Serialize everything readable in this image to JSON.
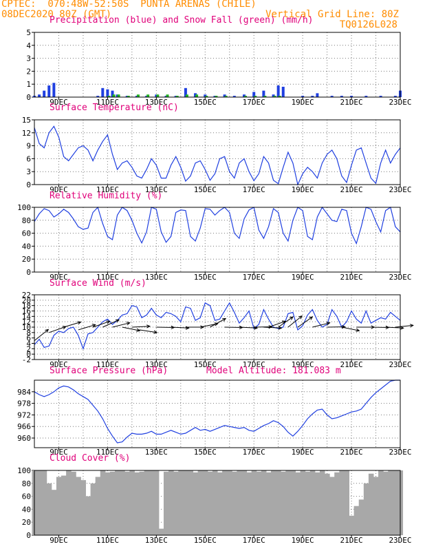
{
  "header": {
    "line1": "CPTEC:  070:48W-52:50S  PUNTA ARENAS (CHILE)",
    "line2": "08DEC2020 80Z (GMT)",
    "grid_note": "Vertical Grid Line: 80Z",
    "code": "TQ0126L028",
    "color": "#ff8c00"
  },
  "x_ticks": [
    "9DEC",
    "11DEC",
    "13DEC",
    "15DEC",
    "17DEC",
    "19DEC",
    "21DEC",
    "23DEC"
  ],
  "colors": {
    "title": "#e0007a",
    "line": "#1f3fe0",
    "precip": "#1f3fe0",
    "snow": "#22b022",
    "cloud": "#a8a8a8",
    "arrow": "#000000"
  },
  "chart_data": [
    {
      "type": "bar",
      "title": "Precipitation (blue) and Snow Fall (green) (mm/h)",
      "ylim": [
        0,
        5
      ],
      "yticks": [
        "0",
        "1",
        "2",
        "3",
        "4",
        "5"
      ],
      "x_days": [
        8.0,
        8.2,
        8.4,
        8.6,
        8.8,
        10.6,
        10.8,
        11.0,
        11.2,
        11.4,
        11.8,
        12.2,
        12.6,
        13.0,
        13.4,
        13.8,
        14.2,
        14.6,
        15.0,
        15.4,
        15.8,
        16.2,
        16.6,
        17.0,
        17.4,
        17.8,
        18.0,
        18.2,
        19.0,
        19.4,
        19.6,
        20.2,
        20.6,
        21.0,
        21.6,
        22.2,
        22.8,
        23.0
      ],
      "series": [
        {
          "name": "Precipitation",
          "values": [
            0.1,
            0.2,
            0.5,
            0.9,
            1.1,
            0.1,
            0.7,
            0.6,
            0.5,
            0.2,
            0.1,
            0.1,
            0.1,
            0.2,
            0.1,
            0.1,
            0.7,
            0.3,
            0.2,
            0.1,
            0.2,
            0.1,
            0.2,
            0.4,
            0.5,
            0.2,
            0.9,
            0.8,
            0.1,
            0.1,
            0.3,
            0.1,
            0.1,
            0.1,
            0.1,
            0.1,
            0.1,
            0.5
          ]
        },
        {
          "name": "Snow Fall",
          "values": [
            0,
            0,
            0,
            0,
            0,
            0,
            0,
            0.1,
            0.2,
            0.2,
            0.1,
            0.2,
            0.2,
            0.2,
            0.2,
            0.1,
            0.2,
            0.2,
            0.1,
            0.1,
            0.1,
            0,
            0.1,
            0.1,
            0.1,
            0.1,
            0.1,
            0,
            0,
            0,
            0,
            0,
            0,
            0,
            0,
            0,
            0,
            0
          ]
        }
      ]
    },
    {
      "type": "line",
      "title": "Surface Temperature (nC)",
      "ylim": [
        0,
        15
      ],
      "yticks": [
        "0",
        "3",
        "6",
        "9",
        "12",
        "15"
      ],
      "x_days": [
        8.0,
        8.2,
        8.4,
        8.6,
        8.8,
        9.0,
        9.2,
        9.4,
        9.6,
        9.8,
        10.0,
        10.2,
        10.4,
        10.6,
        10.8,
        11.0,
        11.2,
        11.4,
        11.6,
        11.8,
        12.0,
        12.2,
        12.4,
        12.6,
        12.8,
        13.0,
        13.2,
        13.4,
        13.6,
        13.8,
        14.0,
        14.2,
        14.4,
        14.6,
        14.8,
        15.0,
        15.2,
        15.4,
        15.6,
        15.8,
        16.0,
        16.2,
        16.4,
        16.6,
        16.8,
        17.0,
        17.2,
        17.4,
        17.6,
        17.8,
        18.0,
        18.2,
        18.4,
        18.6,
        18.8,
        19.0,
        19.2,
        19.4,
        19.6,
        19.8,
        20.0,
        20.2,
        20.4,
        20.6,
        20.8,
        21.0,
        21.2,
        21.4,
        21.6,
        21.8,
        22.0,
        22.2,
        22.4,
        22.6,
        22.8,
        23.0
      ],
      "values": [
        13.2,
        9.5,
        8.5,
        12.0,
        13.5,
        11.0,
        6.5,
        5.5,
        7.0,
        8.5,
        9.0,
        8.0,
        5.5,
        8.0,
        10.0,
        11.5,
        7.0,
        3.5,
        5.0,
        5.5,
        4.0,
        2.0,
        1.5,
        3.5,
        6.0,
        4.5,
        1.5,
        1.5,
        4.5,
        6.5,
        4.0,
        0.8,
        2.0,
        5.0,
        5.5,
        3.5,
        1.0,
        2.5,
        6.0,
        6.5,
        3.0,
        1.5,
        5.0,
        6.0,
        3.0,
        0.9,
        2.5,
        6.5,
        5.0,
        1.0,
        0.2,
        4.0,
        7.5,
        5.0,
        0.0,
        2.5,
        4.0,
        3.0,
        1.5,
        5.0,
        7.0,
        8.0,
        6.0,
        2.0,
        0.5,
        4.5,
        8.0,
        8.5,
        5.0,
        1.5,
        0.3,
        5.0,
        8.0,
        5.0,
        7.0,
        8.5
      ]
    },
    {
      "type": "line",
      "title": "Relative Humidity (%)",
      "ylim": [
        0,
        100
      ],
      "yticks": [
        "0",
        "20",
        "40",
        "60",
        "80",
        "100"
      ],
      "x_days": [
        8.0,
        8.2,
        8.4,
        8.6,
        8.8,
        9.0,
        9.2,
        9.4,
        9.6,
        9.8,
        10.0,
        10.2,
        10.4,
        10.6,
        10.8,
        11.0,
        11.2,
        11.4,
        11.6,
        11.8,
        12.0,
        12.2,
        12.4,
        12.6,
        12.8,
        13.0,
        13.2,
        13.4,
        13.6,
        13.8,
        14.0,
        14.2,
        14.4,
        14.6,
        14.8,
        15.0,
        15.2,
        15.4,
        15.6,
        15.8,
        16.0,
        16.2,
        16.4,
        16.6,
        16.8,
        17.0,
        17.2,
        17.4,
        17.6,
        17.8,
        18.0,
        18.2,
        18.4,
        18.6,
        18.8,
        19.0,
        19.2,
        19.4,
        19.6,
        19.8,
        20.0,
        20.2,
        20.4,
        20.6,
        20.8,
        21.0,
        21.2,
        21.4,
        21.6,
        21.8,
        22.0,
        22.2,
        22.4,
        22.6,
        22.8,
        23.0
      ],
      "values": [
        78,
        90,
        98,
        95,
        85,
        90,
        97,
        92,
        82,
        70,
        66,
        68,
        92,
        100,
        75,
        55,
        50,
        88,
        100,
        95,
        80,
        60,
        45,
        62,
        100,
        97,
        62,
        46,
        55,
        92,
        96,
        95,
        55,
        48,
        68,
        98,
        97,
        88,
        95,
        100,
        92,
        60,
        52,
        82,
        96,
        100,
        65,
        52,
        70,
        98,
        92,
        60,
        48,
        80,
        100,
        95,
        55,
        50,
        85,
        100,
        90,
        80,
        78,
        97,
        95,
        60,
        44,
        70,
        100,
        97,
        78,
        62,
        95,
        100,
        70,
        62
      ]
    },
    {
      "type": "line",
      "title": "Surface Wind (m/s)",
      "ylim": [
        -2,
        22
      ],
      "yticks": [
        "-2",
        "0",
        "2",
        "4",
        "6",
        "8",
        "10",
        "12",
        "14",
        "16",
        "18",
        "20",
        "22"
      ],
      "x_days": [
        8.0,
        8.2,
        8.4,
        8.6,
        8.8,
        9.0,
        9.2,
        9.4,
        9.6,
        9.8,
        10.0,
        10.2,
        10.4,
        10.6,
        10.8,
        11.0,
        11.2,
        11.4,
        11.6,
        11.8,
        12.0,
        12.2,
        12.4,
        12.6,
        12.8,
        13.0,
        13.2,
        13.4,
        13.6,
        13.8,
        14.0,
        14.2,
        14.4,
        14.6,
        14.8,
        15.0,
        15.2,
        15.4,
        15.6,
        15.8,
        16.0,
        16.2,
        16.4,
        16.6,
        16.8,
        17.0,
        17.2,
        17.4,
        17.6,
        17.8,
        18.0,
        18.2,
        18.4,
        18.6,
        18.8,
        19.0,
        19.2,
        19.4,
        19.6,
        19.8,
        20.0,
        20.2,
        20.4,
        20.6,
        20.8,
        21.0,
        21.2,
        21.4,
        21.6,
        21.8,
        22.0,
        22.2,
        22.4,
        22.6,
        22.8,
        23.0
      ],
      "values": [
        3.5,
        5.5,
        2.5,
        3.0,
        7.0,
        8.5,
        8.0,
        9.5,
        10.0,
        7.0,
        2.0,
        7.5,
        8.0,
        10.0,
        12.0,
        13.0,
        11.0,
        12.5,
        14.5,
        15.0,
        18.0,
        17.5,
        13.5,
        14.5,
        17.0,
        14.5,
        13.5,
        15.5,
        15.0,
        14.0,
        12.0,
        17.5,
        17.0,
        12.5,
        13.5,
        19.0,
        18.0,
        12.5,
        13.0,
        16.0,
        19.0,
        15.5,
        11.5,
        13.5,
        16.0,
        9.5,
        11.0,
        16.5,
        13.0,
        10.0,
        9.5,
        10.0,
        15.0,
        15.5,
        9.0,
        10.5,
        14.5,
        16.5,
        12.5,
        10.0,
        11.0,
        16.5,
        14.0,
        10.0,
        12.0,
        16.0,
        13.0,
        11.5,
        16.0,
        11.5,
        12.5,
        13.5,
        13.0,
        15.5,
        14.0,
        12.5
      ]
    },
    {
      "type": "line",
      "title": "Surface Pressure (hPa)",
      "annotation": "Model Altitude: 181.083 m",
      "ylim": [
        955,
        990
      ],
      "yticks": [
        "960",
        "966",
        "972",
        "978",
        "984"
      ],
      "x_days": [
        8.0,
        8.2,
        8.4,
        8.6,
        8.8,
        9.0,
        9.2,
        9.4,
        9.6,
        9.8,
        10.0,
        10.2,
        10.4,
        10.6,
        10.8,
        11.0,
        11.2,
        11.4,
        11.6,
        11.8,
        12.0,
        12.2,
        12.4,
        12.6,
        12.8,
        13.0,
        13.2,
        13.4,
        13.6,
        13.8,
        14.0,
        14.2,
        14.4,
        14.6,
        14.8,
        15.0,
        15.2,
        15.4,
        15.6,
        15.8,
        16.0,
        16.2,
        16.4,
        16.6,
        16.8,
        17.0,
        17.2,
        17.4,
        17.6,
        17.8,
        18.0,
        18.2,
        18.4,
        18.6,
        18.8,
        19.0,
        19.2,
        19.4,
        19.6,
        19.8,
        20.0,
        20.2,
        20.4,
        20.6,
        20.8,
        21.0,
        21.2,
        21.4,
        21.6,
        21.8,
        22.0,
        22.2,
        22.4,
        22.6,
        22.8,
        23.0
      ],
      "values": [
        984.0,
        982.5,
        981.5,
        982.5,
        984.0,
        986.0,
        987.0,
        986.5,
        985.0,
        983.0,
        981.5,
        980.0,
        977.0,
        974.0,
        970.0,
        965.0,
        961.0,
        957.5,
        958.0,
        960.5,
        962.5,
        962.0,
        962.0,
        962.5,
        963.5,
        962.0,
        962.0,
        963.0,
        964.0,
        963.0,
        962.0,
        962.5,
        964.0,
        965.5,
        964.0,
        964.5,
        963.5,
        964.5,
        965.5,
        966.5,
        966.0,
        965.5,
        965.0,
        965.5,
        964.0,
        963.5,
        965.0,
        966.5,
        967.5,
        969.0,
        968.0,
        966.0,
        963.0,
        961.0,
        963.5,
        966.5,
        970.0,
        972.5,
        974.5,
        975.0,
        972.0,
        970.0,
        970.5,
        971.5,
        972.5,
        973.5,
        974.0,
        975.0,
        978.0,
        981.0,
        983.5,
        985.5,
        987.5,
        989.5,
        990.0,
        990.0
      ]
    },
    {
      "type": "bar",
      "title": "Cloud Cover (%)",
      "ylim": [
        0,
        100
      ],
      "yticks": [
        "0",
        "20",
        "40",
        "60",
        "80",
        "100"
      ],
      "x_days": [
        8.0,
        8.2,
        8.4,
        8.6,
        8.8,
        9.0,
        9.2,
        9.4,
        9.6,
        9.8,
        10.0,
        10.2,
        10.4,
        10.6,
        10.8,
        11.0,
        11.2,
        11.4,
        11.6,
        11.8,
        12.0,
        12.2,
        12.4,
        12.6,
        12.8,
        13.0,
        13.2,
        13.4,
        13.6,
        13.8,
        14.0,
        14.2,
        14.4,
        14.6,
        14.8,
        15.0,
        15.2,
        15.4,
        15.6,
        15.8,
        16.0,
        16.2,
        16.4,
        16.6,
        16.8,
        17.0,
        17.2,
        17.4,
        17.6,
        17.8,
        18.0,
        18.2,
        18.4,
        18.6,
        18.8,
        19.0,
        19.2,
        19.4,
        19.6,
        19.8,
        20.0,
        20.2,
        20.4,
        20.6,
        20.8,
        21.0,
        21.2,
        21.4,
        21.6,
        21.8,
        22.0,
        22.2,
        22.4,
        22.6,
        22.8,
        23.0
      ],
      "values": [
        100,
        100,
        100,
        80,
        70,
        90,
        92,
        100,
        98,
        90,
        85,
        60,
        80,
        90,
        100,
        97,
        98,
        100,
        100,
        98,
        100,
        97,
        98,
        100,
        100,
        100,
        10,
        98,
        100,
        98,
        100,
        100,
        100,
        97,
        100,
        100,
        98,
        100,
        97,
        100,
        100,
        98,
        100,
        100,
        97,
        100,
        98,
        100,
        97,
        100,
        100,
        98,
        100,
        100,
        97,
        100,
        98,
        100,
        97,
        100,
        95,
        90,
        97,
        100,
        100,
        30,
        45,
        55,
        80,
        95,
        90,
        100,
        98,
        100,
        100,
        100
      ]
    }
  ],
  "wind_arrows": [
    {
      "day": 8.0,
      "speed": 5,
      "dx": 1.0,
      "dy": 0.8
    },
    {
      "day": 8.6,
      "speed": 8,
      "dx": 1.0,
      "dy": 0.35
    },
    {
      "day": 9.2,
      "speed": 10,
      "dx": 1.0,
      "dy": 0.3
    },
    {
      "day": 9.8,
      "speed": 9,
      "dx": 1.0,
      "dy": 0.3
    },
    {
      "day": 10.4,
      "speed": 10,
      "dx": 1.0,
      "dy": 0.35
    },
    {
      "day": 10.8,
      "speed": 10,
      "dx": 1.0,
      "dy": 0.45
    },
    {
      "day": 11.2,
      "speed": 10,
      "dx": 1.0,
      "dy": 0.25
    },
    {
      "day": 11.6,
      "speed": 10,
      "dx": 1.0,
      "dy": -0.2
    },
    {
      "day": 12.0,
      "speed": 10,
      "dx": 1.0,
      "dy": 0.05
    },
    {
      "day": 12.3,
      "speed": 9,
      "dx": 1.0,
      "dy": -0.15
    },
    {
      "day": 13.0,
      "speed": 10,
      "dx": 1.0,
      "dy": -0.02
    },
    {
      "day": 13.6,
      "speed": 10,
      "dx": 1.0,
      "dy": -0.05
    },
    {
      "day": 14.2,
      "speed": 10,
      "dx": 1.0,
      "dy": 0.0
    },
    {
      "day": 14.8,
      "speed": 10,
      "dx": 1.0,
      "dy": 0.2
    },
    {
      "day": 15.2,
      "speed": 10,
      "dx": 1.0,
      "dy": 0.55
    },
    {
      "day": 15.8,
      "speed": 10,
      "dx": 1.0,
      "dy": -0.02
    },
    {
      "day": 16.4,
      "speed": 10,
      "dx": 1.0,
      "dy": -0.05
    },
    {
      "day": 17.0,
      "speed": 10,
      "dx": 1.0,
      "dy": 0.02
    },
    {
      "day": 17.4,
      "speed": 10,
      "dx": 1.0,
      "dy": -0.05
    },
    {
      "day": 17.6,
      "speed": 10,
      "dx": 1.0,
      "dy": 0.35
    },
    {
      "day": 18.0,
      "speed": 10,
      "dx": 1.0,
      "dy": 0.7
    },
    {
      "day": 18.4,
      "speed": 10,
      "dx": 1.0,
      "dy": 0.8
    },
    {
      "day": 18.8,
      "speed": 10,
      "dx": 1.0,
      "dy": 0.7
    },
    {
      "day": 19.4,
      "speed": 10,
      "dx": 1.0,
      "dy": 0.25
    },
    {
      "day": 20.0,
      "speed": 10,
      "dx": 1.0,
      "dy": 0.02
    },
    {
      "day": 20.6,
      "speed": 10,
      "dx": 1.0,
      "dy": -0.2
    },
    {
      "day": 21.2,
      "speed": 10,
      "dx": 1.0,
      "dy": 0.0
    },
    {
      "day": 21.8,
      "speed": 10,
      "dx": 1.0,
      "dy": -0.02
    },
    {
      "day": 22.4,
      "speed": 10,
      "dx": 1.0,
      "dy": -0.05
    },
    {
      "day": 22.8,
      "speed": 10,
      "dx": 1.0,
      "dy": 0.1
    }
  ]
}
